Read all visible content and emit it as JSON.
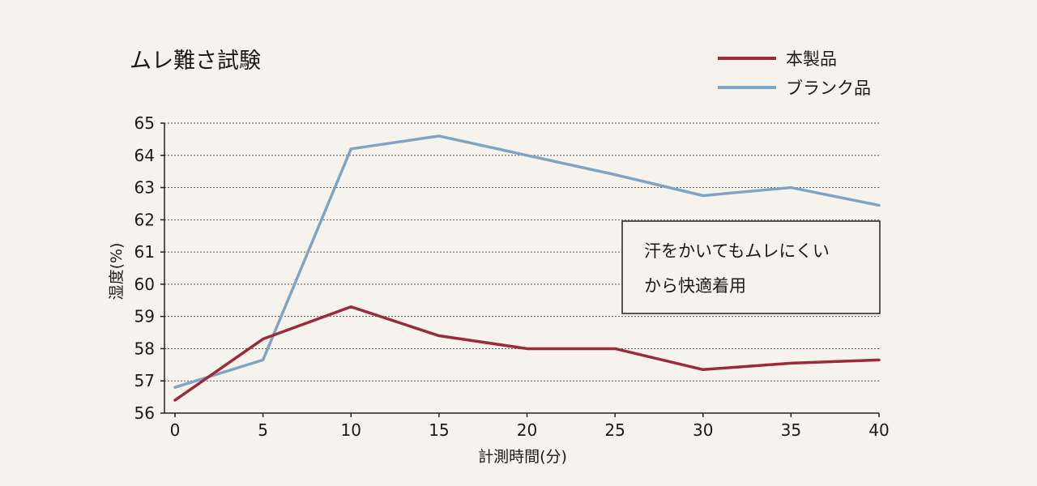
{
  "chart_data": {
    "type": "line",
    "title": "ムレ難さ試験",
    "xlabel": "計測時間(分)",
    "ylabel": "湿度(%)",
    "x": [
      0,
      5,
      10,
      15,
      20,
      25,
      30,
      35,
      40
    ],
    "xlim": [
      0,
      40
    ],
    "ylim": [
      56,
      65
    ],
    "xticks": [
      "0",
      "5",
      "10",
      "15",
      "20",
      "25",
      "30",
      "35",
      "40"
    ],
    "yticks": [
      "56",
      "57",
      "58",
      "59",
      "60",
      "61",
      "62",
      "63",
      "64",
      "65"
    ],
    "grid": true,
    "legend_position": "top-right",
    "series": [
      {
        "name": "本製品",
        "color": "#9b2a3a",
        "values": [
          56.4,
          58.3,
          59.3,
          58.4,
          58.0,
          58.0,
          57.35,
          57.55,
          57.65
        ]
      },
      {
        "name": "ブランク品",
        "color": "#7fa4c4",
        "values": [
          56.8,
          57.65,
          64.2,
          64.6,
          64.0,
          63.4,
          62.75,
          63.0,
          62.45
        ]
      }
    ],
    "annotation": {
      "lines": [
        "汗をかいてもムレにくい",
        "から快適着用"
      ]
    }
  }
}
